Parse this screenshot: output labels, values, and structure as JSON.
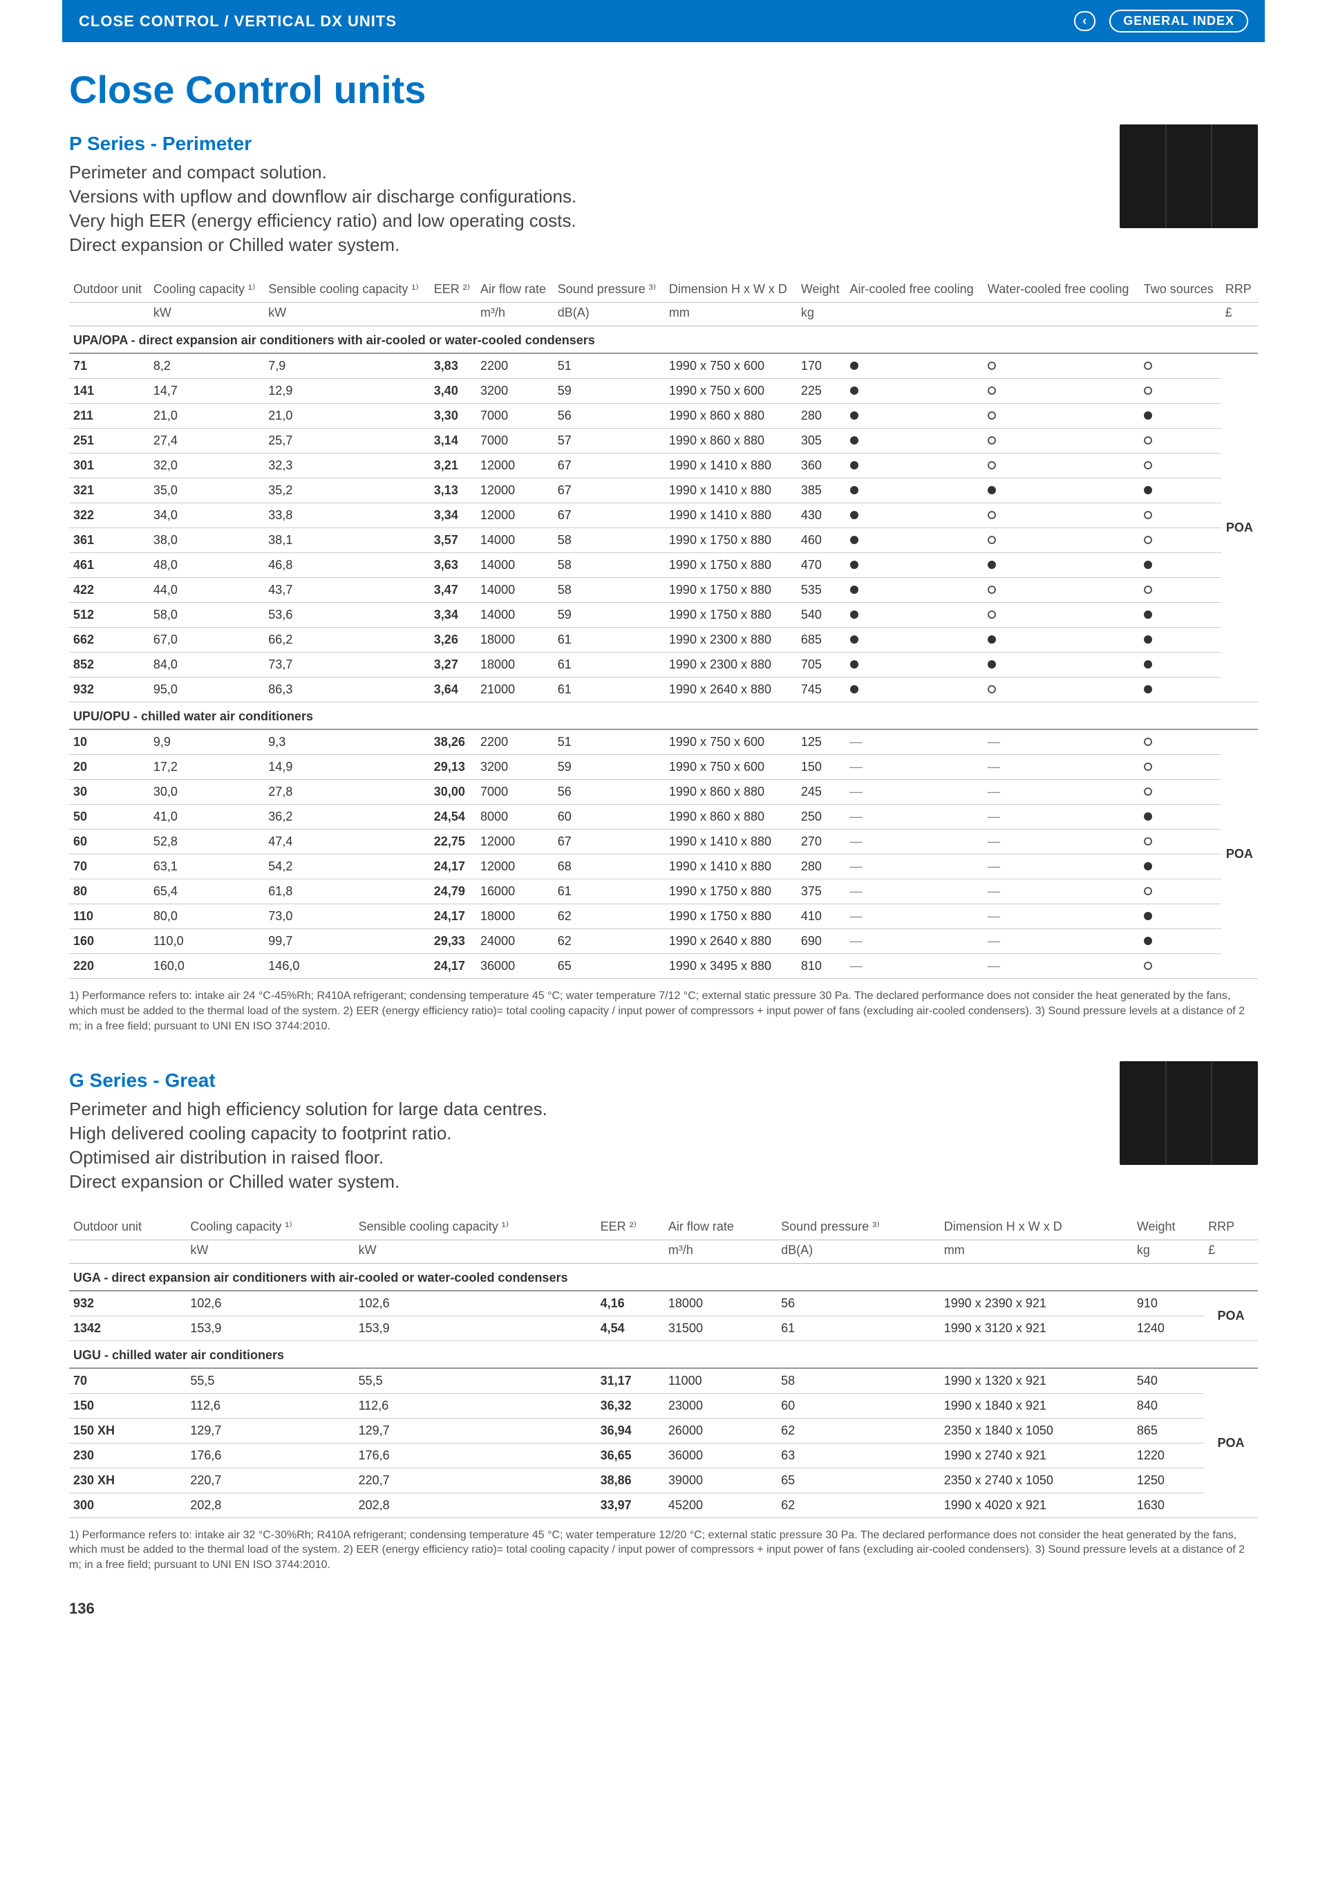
{
  "header": {
    "left": "CLOSE CONTROL / VERTICAL DX UNITS",
    "chevron": "‹",
    "right": "GENERAL INDEX"
  },
  "main_title": "Close Control units",
  "page_number": "136",
  "p_series": {
    "title": "P Series - Perimeter",
    "desc_lines": [
      "Perimeter and compact solution.",
      "Versions with upflow and downflow air discharge configurations.",
      "Very high EER (energy efficiency ratio) and low operating costs.",
      "Direct expansion or Chilled water system."
    ],
    "columns": [
      "Outdoor unit",
      "Cooling capacity ¹⁾",
      "Sensible cooling capacity ¹⁾",
      "EER ²⁾",
      "Air flow rate",
      "Sound pressure ³⁾",
      "Dimension H x W x D",
      "Weight",
      "Air-cooled free cooling",
      "Water-cooled free cooling",
      "Two sources",
      "RRP"
    ],
    "units": [
      "",
      "kW",
      "kW",
      "",
      "m³/h",
      "dB(A)",
      "mm",
      "kg",
      "",
      "",
      "",
      "£"
    ],
    "section1_label": "UPA/OPA - direct expansion air conditioners with air-cooled or water-cooled condensers",
    "section1_rows": [
      [
        "71",
        "8,2",
        "7,9",
        "3,83",
        "2200",
        "51",
        "1990 x 750 x 600",
        "170",
        "f",
        "o",
        "o"
      ],
      [
        "141",
        "14,7",
        "12,9",
        "3,40",
        "3200",
        "59",
        "1990 x 750 x 600",
        "225",
        "f",
        "o",
        "o"
      ],
      [
        "211",
        "21,0",
        "21,0",
        "3,30",
        "7000",
        "56",
        "1990 x 860 x 880",
        "280",
        "f",
        "o",
        "f"
      ],
      [
        "251",
        "27,4",
        "25,7",
        "3,14",
        "7000",
        "57",
        "1990 x 860 x 880",
        "305",
        "f",
        "o",
        "o"
      ],
      [
        "301",
        "32,0",
        "32,3",
        "3,21",
        "12000",
        "67",
        "1990 x 1410 x 880",
        "360",
        "f",
        "o",
        "o"
      ],
      [
        "321",
        "35,0",
        "35,2",
        "3,13",
        "12000",
        "67",
        "1990 x 1410 x 880",
        "385",
        "f",
        "f",
        "f"
      ],
      [
        "322",
        "34,0",
        "33,8",
        "3,34",
        "12000",
        "67",
        "1990 x 1410 x 880",
        "430",
        "f",
        "o",
        "o"
      ],
      [
        "361",
        "38,0",
        "38,1",
        "3,57",
        "14000",
        "58",
        "1990 x 1750 x 880",
        "460",
        "f",
        "o",
        "o"
      ],
      [
        "461",
        "48,0",
        "46,8",
        "3,63",
        "14000",
        "58",
        "1990 x 1750 x 880",
        "470",
        "f",
        "f",
        "f"
      ],
      [
        "422",
        "44,0",
        "43,7",
        "3,47",
        "14000",
        "58",
        "1990 x 1750 x 880",
        "535",
        "f",
        "o",
        "o"
      ],
      [
        "512",
        "58,0",
        "53,6",
        "3,34",
        "14000",
        "59",
        "1990 x 1750 x 880",
        "540",
        "f",
        "o",
        "f"
      ],
      [
        "662",
        "67,0",
        "66,2",
        "3,26",
        "18000",
        "61",
        "1990 x 2300 x 880",
        "685",
        "f",
        "f",
        "f"
      ],
      [
        "852",
        "84,0",
        "73,7",
        "3,27",
        "18000",
        "61",
        "1990 x 2300 x 880",
        "705",
        "f",
        "f",
        "f"
      ],
      [
        "932",
        "95,0",
        "86,3",
        "3,64",
        "21000",
        "61",
        "1990 x 2640 x 880",
        "745",
        "f",
        "o",
        "f"
      ]
    ],
    "section2_label": "UPU/OPU - chilled water air conditioners",
    "section2_rows": [
      [
        "10",
        "9,9",
        "9,3",
        "38,26",
        "2200",
        "51",
        "1990 x 750 x 600",
        "125",
        "-",
        "-",
        "o"
      ],
      [
        "20",
        "17,2",
        "14,9",
        "29,13",
        "3200",
        "59",
        "1990 x 750 x 600",
        "150",
        "-",
        "-",
        "o"
      ],
      [
        "30",
        "30,0",
        "27,8",
        "30,00",
        "7000",
        "56",
        "1990 x 860 x 880",
        "245",
        "-",
        "-",
        "o"
      ],
      [
        "50",
        "41,0",
        "36,2",
        "24,54",
        "8000",
        "60",
        "1990 x 860 x 880",
        "250",
        "-",
        "-",
        "f"
      ],
      [
        "60",
        "52,8",
        "47,4",
        "22,75",
        "12000",
        "67",
        "1990 x 1410 x 880",
        "270",
        "-",
        "-",
        "o"
      ],
      [
        "70",
        "63,1",
        "54,2",
        "24,17",
        "12000",
        "68",
        "1990 x 1410 x 880",
        "280",
        "-",
        "-",
        "f"
      ],
      [
        "80",
        "65,4",
        "61,8",
        "24,79",
        "16000",
        "61",
        "1990 x 1750 x 880",
        "375",
        "-",
        "-",
        "o"
      ],
      [
        "110",
        "80,0",
        "73,0",
        "24,17",
        "18000",
        "62",
        "1990 x 1750 x 880",
        "410",
        "-",
        "-",
        "f"
      ],
      [
        "160",
        "110,0",
        "99,7",
        "29,33",
        "24000",
        "62",
        "1990 x 2640 x 880",
        "690",
        "-",
        "-",
        "f"
      ],
      [
        "220",
        "160,0",
        "146,0",
        "24,17",
        "36000",
        "65",
        "1990 x 3495 x 880",
        "810",
        "-",
        "-",
        "o"
      ]
    ],
    "rrp": "POA",
    "footnote": "1) Performance refers to: intake air 24 °C-45%Rh; R410A refrigerant; condensing temperature 45 °C; water temperature 7/12 °C; external static pressure 30 Pa. The declared performance does not consider the heat generated by the fans, which must be added to the thermal load of the system. 2) EER (energy efficiency ratio)= total cooling capacity / input power of compressors + input power of fans (excluding air-cooled condensers). 3) Sound pressure levels at a distance of 2 m; in a free field; pursuant to UNI EN ISO 3744:2010."
  },
  "g_series": {
    "title": "G Series - Great",
    "desc_lines": [
      "Perimeter and high efficiency solution for large data centres.",
      "High delivered cooling capacity to footprint ratio.",
      "Optimised air distribution in raised floor.",
      "Direct expansion or Chilled water system."
    ],
    "columns": [
      "Outdoor unit",
      "Cooling capacity ¹⁾",
      "Sensible cooling capacity ¹⁾",
      "EER ²⁾",
      "Air flow rate",
      "Sound pressure ³⁾",
      "Dimension H x W x D",
      "Weight",
      "RRP"
    ],
    "units": [
      "",
      "kW",
      "kW",
      "",
      "m³/h",
      "dB(A)",
      "mm",
      "kg",
      "£"
    ],
    "section1_label": "UGA - direct expansion air conditioners with air-cooled or water-cooled condensers",
    "section1_rows": [
      [
        "932",
        "102,6",
        "102,6",
        "4,16",
        "18000",
        "56",
        "1990 x 2390 x 921",
        "910"
      ],
      [
        "1342",
        "153,9",
        "153,9",
        "4,54",
        "31500",
        "61",
        "1990 x 3120 x 921",
        "1240"
      ]
    ],
    "section2_label": "UGU - chilled water air conditioners",
    "section2_rows": [
      [
        "70",
        "55,5",
        "55,5",
        "31,17",
        "11000",
        "58",
        "1990 x 1320 x 921",
        "540"
      ],
      [
        "150",
        "112,6",
        "112,6",
        "36,32",
        "23000",
        "60",
        "1990 x 1840 x 921",
        "840"
      ],
      [
        "150 XH",
        "129,7",
        "129,7",
        "36,94",
        "26000",
        "62",
        "2350 x 1840 x 1050",
        "865"
      ],
      [
        "230",
        "176,6",
        "176,6",
        "36,65",
        "36000",
        "63",
        "1990 x 2740 x 921",
        "1220"
      ],
      [
        "230 XH",
        "220,7",
        "220,7",
        "38,86",
        "39000",
        "65",
        "2350 x 2740 x 1050",
        "1250"
      ],
      [
        "300",
        "202,8",
        "202,8",
        "33,97",
        "45200",
        "62",
        "1990 x 4020 x 921",
        "1630"
      ]
    ],
    "rrp": "POA",
    "footnote": "1) Performance refers to: intake air 32 °C-30%Rh; R410A refrigerant; condensing temperature 45 °C; water temperature 12/20 °C; external static pressure 30 Pa. The declared performance does not consider the heat generated by the fans, which must be added to the thermal load of the system. 2) EER (energy efficiency ratio)= total cooling capacity / input power of compressors + input power of fans (excluding air-cooled condensers). 3) Sound pressure levels at a distance of 2 m; in a free field; pursuant to UNI EN ISO 3744:2010."
  }
}
